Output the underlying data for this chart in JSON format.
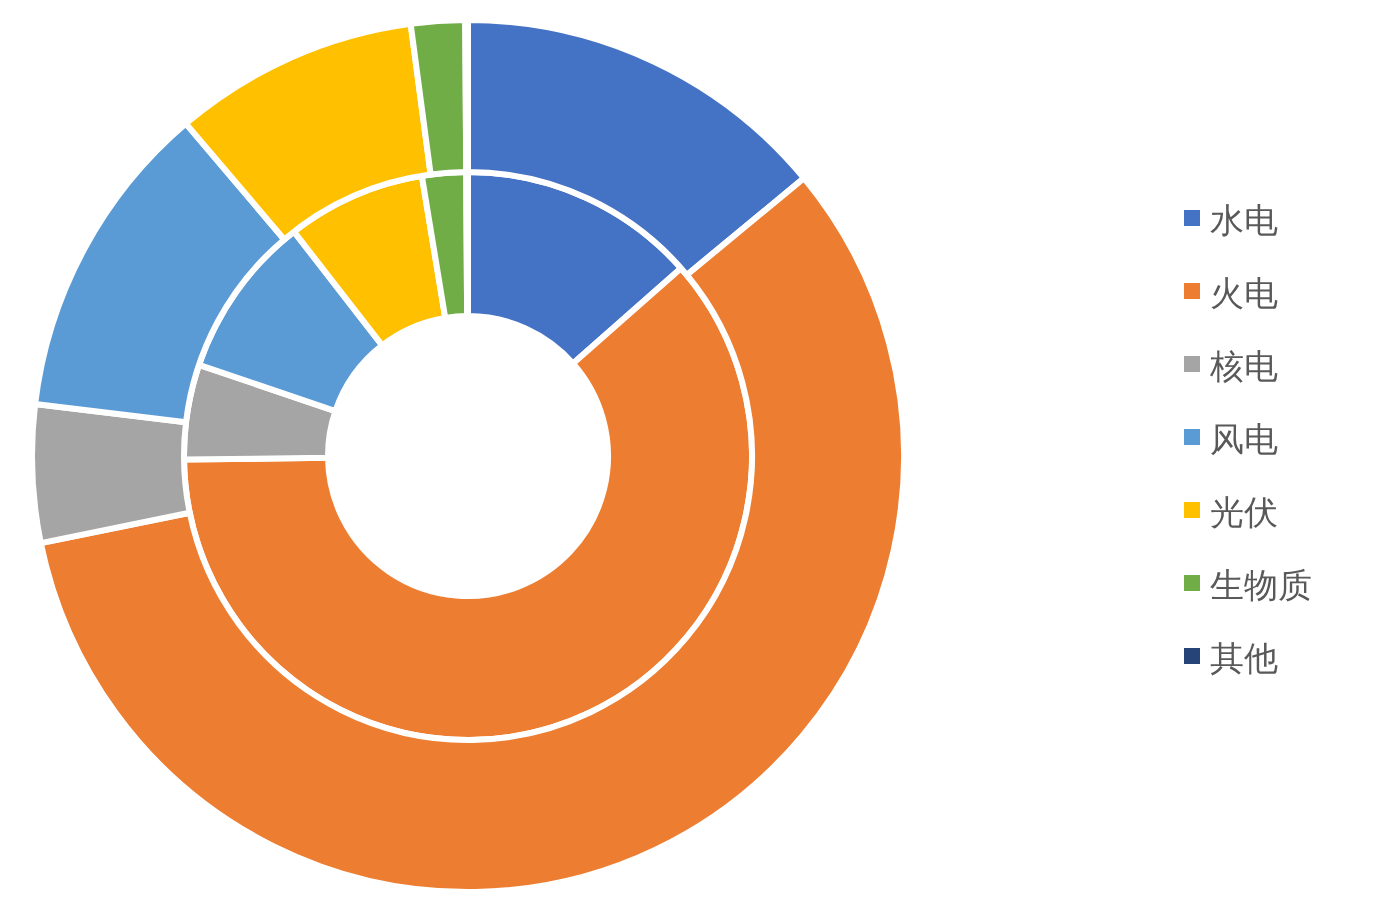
{
  "chart_data": {
    "type": "donut",
    "categories": [
      "水电",
      "火电",
      "核电",
      "风电",
      "光伏",
      "生物质",
      "其他"
    ],
    "colors": [
      "#4472c4",
      "#ed7d31",
      "#a5a5a5",
      "#5b9bd5",
      "#ffc000",
      "#70ad47",
      "#264478"
    ],
    "series": [
      {
        "values": [
          13.5,
          61.3,
          5.4,
          9.3,
          7.9,
          2.5,
          0.1
        ]
      },
      {
        "values": [
          14,
          57.8,
          5.1,
          11.9,
          9.1,
          2,
          0.1
        ]
      }
    ],
    "legend": "right"
  }
}
